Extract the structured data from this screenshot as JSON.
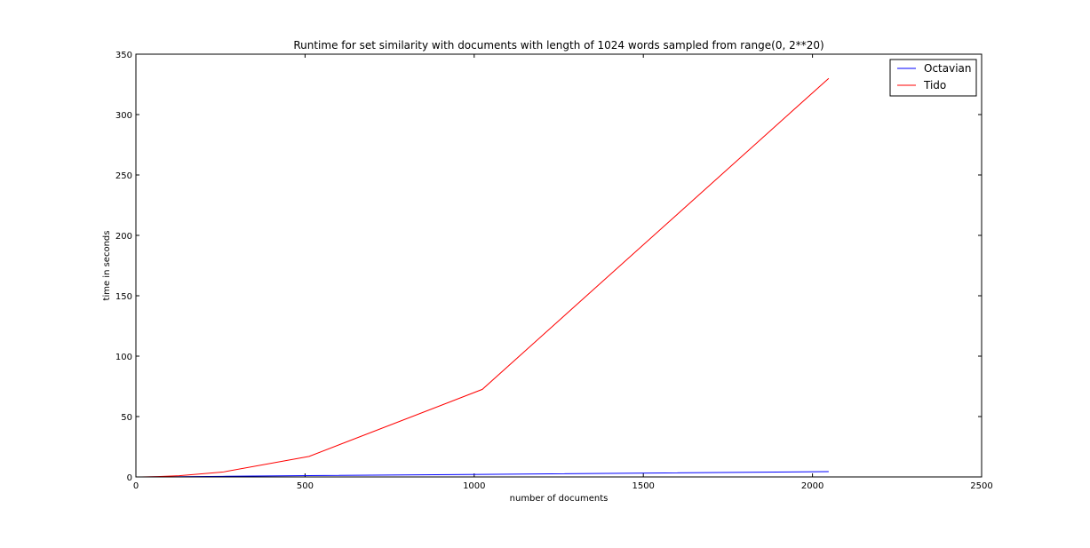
{
  "chart_data": {
    "type": "line",
    "title": "Runtime for set similarity with documents with length of 1024 words sampled from range(0, 2**20)",
    "xlabel": "number of documents",
    "ylabel": "time in seconds",
    "xlim": [
      0,
      2500
    ],
    "ylim": [
      0,
      350
    ],
    "xticks": [
      0,
      500,
      1000,
      1500,
      2000,
      2500
    ],
    "yticks": [
      0,
      50,
      100,
      150,
      200,
      250,
      300,
      350
    ],
    "grid": false,
    "legend_position": "top-right",
    "series": [
      {
        "name": "Octavian",
        "color": "#0000ff",
        "x": [
          2,
          4,
          8,
          16,
          32,
          64,
          128,
          256,
          512,
          1024,
          2048
        ],
        "y": [
          0.0,
          0.0,
          0.0,
          0.0,
          0.0,
          0.1,
          0.2,
          0.5,
          1.1,
          2.1,
          4.4
        ]
      },
      {
        "name": "Tido",
        "color": "#ff0000",
        "x": [
          2,
          4,
          8,
          16,
          32,
          64,
          128,
          256,
          512,
          1024,
          2048
        ],
        "y": [
          0.0,
          0.0,
          0.0,
          0.0,
          0.1,
          0.3,
          1.0,
          4.0,
          17.0,
          72.5,
          330.0
        ]
      }
    ]
  }
}
